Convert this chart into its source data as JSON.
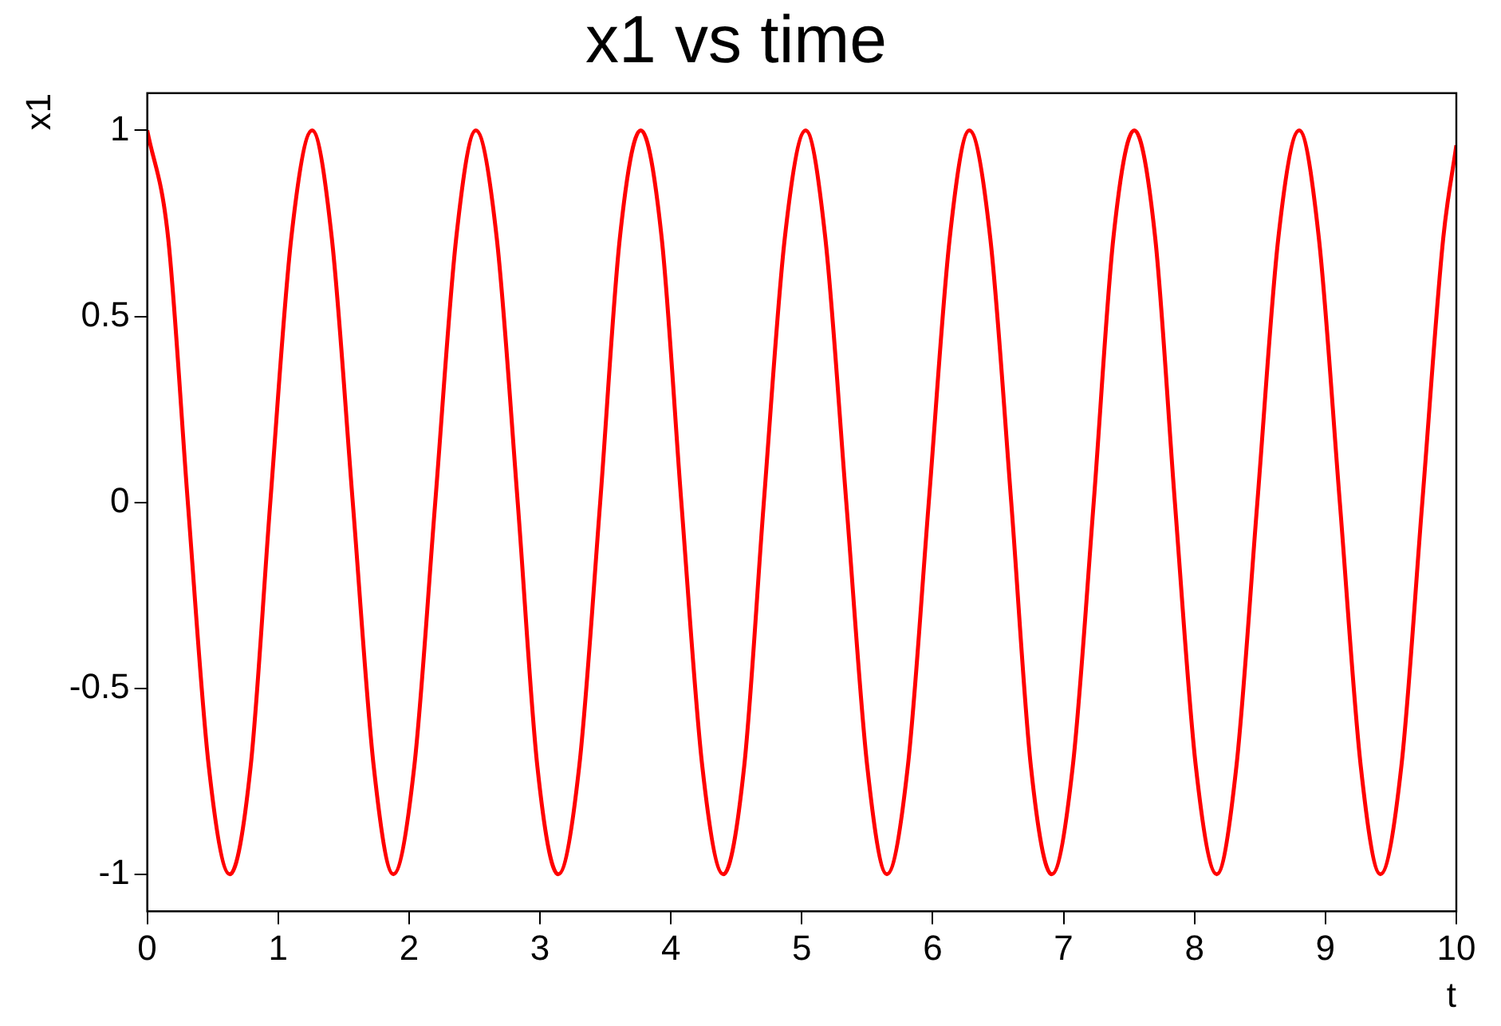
{
  "chart_data": {
    "type": "line",
    "title": "x1 vs time",
    "xlabel": "t",
    "ylabel": "x1",
    "x": [
      0,
      0.16,
      0.31,
      0.47,
      0.63,
      0.79,
      0.94,
      1.1,
      1.26,
      1.41,
      1.57,
      1.73,
      1.88,
      2.04,
      2.2,
      2.36,
      2.51,
      2.67,
      2.83,
      2.98,
      3.14,
      3.3,
      3.46,
      3.61,
      3.77,
      3.93,
      4.08,
      4.24,
      4.4,
      4.56,
      4.71,
      4.87,
      5.03,
      5.18,
      5.34,
      5.5,
      5.65,
      5.81,
      5.97,
      6.13,
      6.28,
      6.44,
      6.6,
      6.75,
      6.91,
      7.07,
      7.23,
      7.38,
      7.54,
      7.7,
      7.85,
      8.01,
      8.17,
      8.32,
      8.48,
      8.64,
      8.8,
      8.95,
      9.11,
      9.27,
      9.42,
      9.58,
      9.74,
      9.9,
      10
    ],
    "series": [
      {
        "color": "#ff0000",
        "values": [
          1,
          0.71,
          0,
          -0.71,
          -1,
          -0.71,
          0,
          0.71,
          1,
          0.71,
          0,
          -0.71,
          -1,
          -0.71,
          0,
          0.71,
          1,
          0.71,
          0,
          -0.71,
          -1,
          -0.71,
          0,
          0.71,
          1,
          0.71,
          0,
          -0.71,
          -1,
          -0.71,
          0,
          0.71,
          1,
          0.71,
          0,
          -0.71,
          -1,
          -0.71,
          0,
          0.71,
          1,
          0.71,
          0,
          -0.71,
          -1,
          -0.71,
          0,
          0.71,
          1,
          0.71,
          0,
          -0.71,
          -1,
          -0.71,
          0,
          0.71,
          1,
          0.71,
          0,
          -0.71,
          -1,
          -0.71,
          0,
          0.71,
          0.96
        ]
      }
    ],
    "xlim": [
      0,
      10
    ],
    "xticks": [
      0,
      1,
      2,
      3,
      4,
      5,
      6,
      7,
      8,
      9,
      10
    ],
    "ylim": [
      -1.1,
      1.1
    ],
    "yticks": [
      -1,
      -0.5,
      0,
      0.5,
      1
    ],
    "grid": false,
    "legend": false,
    "marker": "none",
    "line_style": "solid"
  }
}
